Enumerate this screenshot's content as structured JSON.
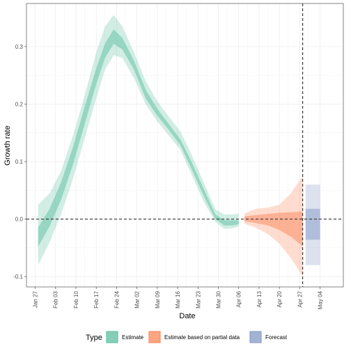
{
  "chart_data": {
    "type": "area",
    "title": "",
    "xlabel": "Date",
    "ylabel": "Growth rate",
    "ylim": [
      -0.118,
      0.375
    ],
    "xlim": [
      "2020-01-24",
      "2020-05-12"
    ],
    "x_ticks": [
      {
        "date": "2020-01-27",
        "label": "Jan 27"
      },
      {
        "date": "2020-02-03",
        "label": "Feb 03"
      },
      {
        "date": "2020-02-10",
        "label": "Feb 10"
      },
      {
        "date": "2020-02-17",
        "label": "Feb 17"
      },
      {
        "date": "2020-02-24",
        "label": "Feb 24"
      },
      {
        "date": "2020-03-02",
        "label": "Mar 02"
      },
      {
        "date": "2020-03-09",
        "label": "Mar 09"
      },
      {
        "date": "2020-03-16",
        "label": "Mar 16"
      },
      {
        "date": "2020-03-23",
        "label": "Mar 23"
      },
      {
        "date": "2020-03-30",
        "label": "Mar 30"
      },
      {
        "date": "2020-04-06",
        "label": "Apr 06"
      },
      {
        "date": "2020-04-13",
        "label": "Apr 13"
      },
      {
        "date": "2020-04-20",
        "label": "Apr 20"
      },
      {
        "date": "2020-04-27",
        "label": "Apr 27"
      },
      {
        "date": "2020-05-04",
        "label": "May 04"
      }
    ],
    "y_ticks": [
      {
        "value": -0.1,
        "label": "-0.1"
      },
      {
        "value": 0.0,
        "label": "0.0"
      },
      {
        "value": 0.1,
        "label": "0.1"
      },
      {
        "value": 0.2,
        "label": "0.2"
      },
      {
        "value": 0.3,
        "label": "0.3"
      }
    ],
    "grid": true,
    "legend_position": "bottom",
    "legend_title": "Type",
    "hline_y": 0,
    "vline_x": "2020-04-28",
    "series": [
      {
        "name": "Estimate",
        "color": "#66c2a5",
        "x": [
          "2020-01-28",
          "2020-02-01",
          "2020-02-05",
          "2020-02-09",
          "2020-02-13",
          "2020-02-17",
          "2020-02-20",
          "2020-02-23",
          "2020-02-26",
          "2020-03-01",
          "2020-03-05",
          "2020-03-09",
          "2020-03-13",
          "2020-03-17",
          "2020-03-21",
          "2020-03-25",
          "2020-03-29",
          "2020-04-01",
          "2020-04-04",
          "2020-04-06"
        ],
        "lower90": [
          -0.08,
          -0.04,
          0.01,
          0.07,
          0.14,
          0.21,
          0.26,
          0.285,
          0.28,
          0.245,
          0.2,
          0.17,
          0.145,
          0.12,
          0.075,
          0.03,
          -0.005,
          -0.017,
          -0.016,
          -0.013
        ],
        "lower50": [
          -0.048,
          -0.012,
          0.035,
          0.095,
          0.165,
          0.235,
          0.28,
          0.305,
          0.295,
          0.26,
          0.21,
          0.18,
          0.155,
          0.128,
          0.085,
          0.04,
          0.0,
          -0.011,
          -0.011,
          -0.009
        ],
        "upper50": [
          -0.015,
          0.018,
          0.065,
          0.125,
          0.195,
          0.262,
          0.305,
          0.33,
          0.315,
          0.275,
          0.225,
          0.192,
          0.165,
          0.138,
          0.097,
          0.052,
          0.008,
          -0.002,
          -0.002,
          -0.002
        ],
        "upper90": [
          0.025,
          0.045,
          0.085,
          0.145,
          0.215,
          0.29,
          0.335,
          0.355,
          0.335,
          0.29,
          0.24,
          0.205,
          0.178,
          0.152,
          0.11,
          0.063,
          0.017,
          0.008,
          0.008,
          0.01
        ]
      },
      {
        "name": "Estimate based on partial data",
        "color": "#fc8d62",
        "x": [
          "2020-04-08",
          "2020-04-12",
          "2020-04-16",
          "2020-04-20",
          "2020-04-24",
          "2020-04-28"
        ],
        "lower90": [
          -0.008,
          -0.015,
          -0.026,
          -0.043,
          -0.068,
          -0.1
        ],
        "lower50": [
          -0.004,
          -0.007,
          -0.011,
          -0.019,
          -0.031,
          -0.047
        ],
        "upper50": [
          0.005,
          0.007,
          0.009,
          0.011,
          0.012,
          0.013
        ],
        "upper90": [
          0.01,
          0.018,
          0.02,
          0.025,
          0.045,
          0.075
        ]
      },
      {
        "name": "Forecast",
        "color": "#8da0cb",
        "x": [
          "2020-04-29",
          "2020-05-04"
        ],
        "lower90": [
          -0.08,
          -0.08
        ],
        "lower50": [
          -0.036,
          -0.036
        ],
        "upper50": [
          0.018,
          0.018
        ],
        "upper90": [
          0.06,
          0.06
        ]
      }
    ]
  }
}
